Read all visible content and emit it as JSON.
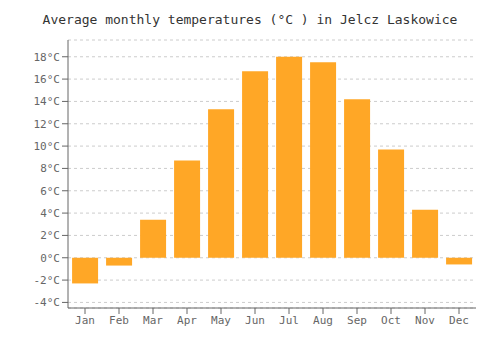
{
  "chart_data": {
    "type": "bar",
    "title": "Average monthly temperatures (°C ) in Jelcz Laskowice",
    "categories": [
      "Jan",
      "Feb",
      "Mar",
      "Apr",
      "May",
      "Jun",
      "Jul",
      "Aug",
      "Sep",
      "Oct",
      "Nov",
      "Dec"
    ],
    "values": [
      -2.3,
      -0.7,
      3.4,
      8.7,
      13.3,
      16.7,
      18.0,
      17.5,
      14.2,
      9.7,
      4.3,
      -0.6
    ],
    "color": "#FFA726",
    "ylim": [
      -4.5,
      19.5
    ],
    "yticks": [
      {
        "value": -4,
        "label": "-4°C"
      },
      {
        "value": -2,
        "label": "-2°C"
      },
      {
        "value": 0,
        "label": "0°C"
      },
      {
        "value": 2,
        "label": "2°C"
      },
      {
        "value": 4,
        "label": "4°C"
      },
      {
        "value": 6,
        "label": "6°C"
      },
      {
        "value": 8,
        "label": "8°C"
      },
      {
        "value": 10,
        "label": "10°C"
      },
      {
        "value": 12,
        "label": "12°C"
      },
      {
        "value": 14,
        "label": "14°C"
      },
      {
        "value": 16,
        "label": "16°C"
      },
      {
        "value": 18,
        "label": "18°C"
      }
    ],
    "grid": true
  }
}
